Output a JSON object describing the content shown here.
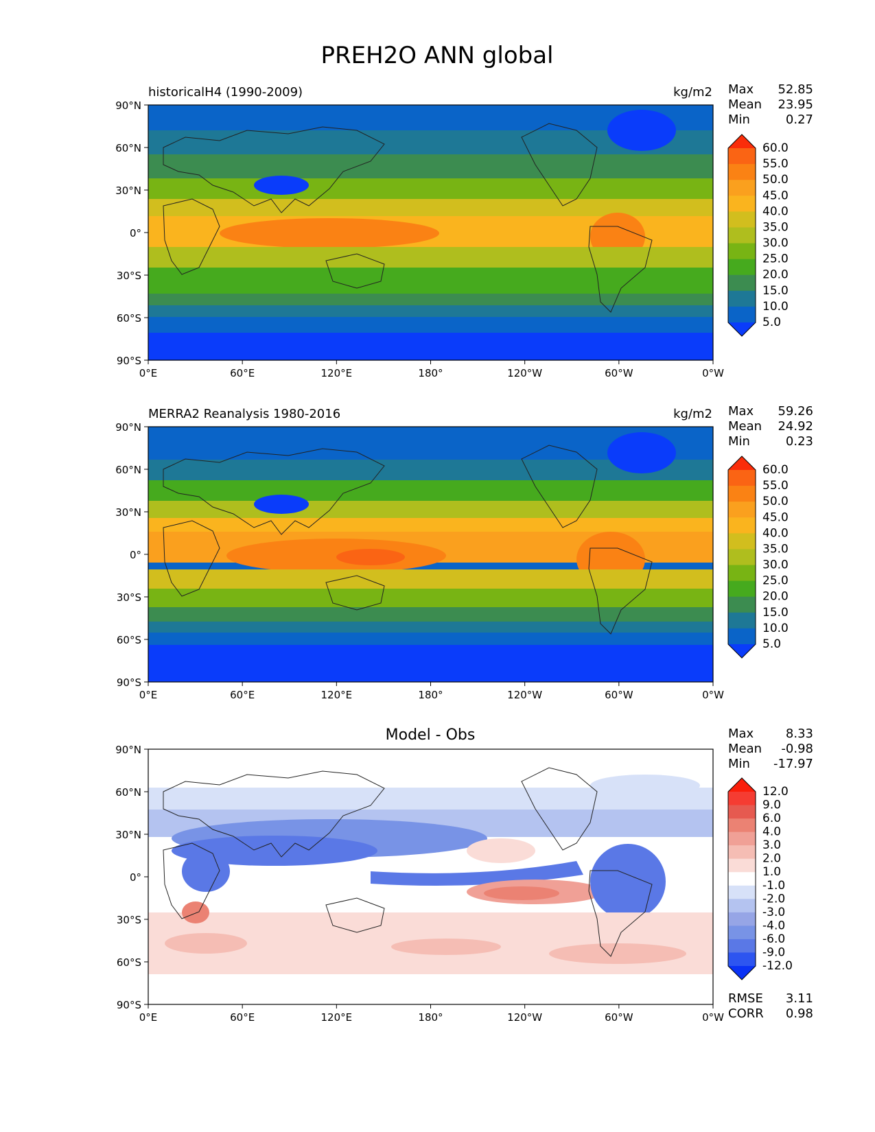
{
  "figure": {
    "title": "PREH2O ANN global"
  },
  "chart_data": [
    {
      "type": "heatmap",
      "panel": "model",
      "title": "",
      "left_label": "historicalH4 (1990-2009)",
      "units": "kg/m2",
      "stats": [
        {
          "label": "Max",
          "value": "52.85"
        },
        {
          "label": "Mean",
          "value": "23.95"
        },
        {
          "label": "Min",
          "value": "0.27"
        }
      ],
      "extra_stats": [],
      "colorbar": {
        "levels": [
          "5.0",
          "10.0",
          "15.0",
          "20.0",
          "25.0",
          "30.0",
          "35.0",
          "40.0",
          "45.0",
          "50.0",
          "55.0",
          "60.0"
        ],
        "colors": [
          "#0a3cfa",
          "#0a64c8",
          "#1e7896",
          "#3c8c50",
          "#46aa1e",
          "#78b414",
          "#afbe1e",
          "#d2be1e",
          "#fab41e",
          "#faa01e",
          "#fa8214",
          "#fa6414",
          "#fa2d0a"
        ]
      },
      "x_ticks": [
        "0°E",
        "60°E",
        "120°E",
        "180°",
        "120°W",
        "60°W",
        "0°W"
      ],
      "y_ticks": [
        "90°N",
        "60°N",
        "30°N",
        "0°",
        "30°S",
        "60°S",
        "90°S"
      ]
    },
    {
      "type": "heatmap",
      "panel": "obs",
      "title": "",
      "left_label": "MERRA2 Reanalysis 1980-2016",
      "units": "kg/m2",
      "stats": [
        {
          "label": "Max",
          "value": "59.26"
        },
        {
          "label": "Mean",
          "value": "24.92"
        },
        {
          "label": "Min",
          "value": "0.23"
        }
      ],
      "extra_stats": [],
      "colorbar": {
        "levels": [
          "5.0",
          "10.0",
          "15.0",
          "20.0",
          "25.0",
          "30.0",
          "35.0",
          "40.0",
          "45.0",
          "50.0",
          "55.0",
          "60.0"
        ],
        "colors": [
          "#0a3cfa",
          "#0a64c8",
          "#1e7896",
          "#3c8c50",
          "#46aa1e",
          "#78b414",
          "#afbe1e",
          "#d2be1e",
          "#fab41e",
          "#faa01e",
          "#fa8214",
          "#fa6414",
          "#fa2d0a"
        ]
      },
      "x_ticks": [
        "0°E",
        "60°E",
        "120°E",
        "180°",
        "120°W",
        "60°W",
        "0°W"
      ],
      "y_ticks": [
        "90°N",
        "60°N",
        "30°N",
        "0°",
        "30°S",
        "60°S",
        "90°S"
      ]
    },
    {
      "type": "heatmap",
      "panel": "diff",
      "title": "Model - Obs",
      "left_label": "",
      "units": "",
      "stats": [
        {
          "label": "Max",
          "value": "8.33"
        },
        {
          "label": "Mean",
          "value": "-0.98"
        },
        {
          "label": "Min",
          "value": "-17.97"
        }
      ],
      "extra_stats": [
        {
          "label": "RMSE",
          "value": "3.11"
        },
        {
          "label": "CORR",
          "value": "0.98"
        }
      ],
      "colorbar": {
        "levels": [
          "-12.0",
          "-9.0",
          "-6.0",
          "-4.0",
          "-3.0",
          "-2.0",
          "-1.0",
          "1.0",
          "2.0",
          "3.0",
          "4.0",
          "6.0",
          "9.0",
          "12.0"
        ],
        "colors": [
          "#0a32f5",
          "#2d55f0",
          "#5a78e6",
          "#7893e6",
          "#96a5e6",
          "#b4c3f0",
          "#d7e1f8",
          "#ffffff",
          "#fadcd7",
          "#f5bdb4",
          "#f0a096",
          "#eb8273",
          "#e65a50",
          "#f53c32",
          "#fa1e0a"
        ]
      },
      "x_ticks": [
        "0°E",
        "60°E",
        "120°E",
        "180°",
        "120°W",
        "60°W",
        "0°W"
      ],
      "y_ticks": [
        "90°N",
        "60°N",
        "30°N",
        "0°",
        "30°S",
        "60°S",
        "90°S"
      ]
    }
  ]
}
